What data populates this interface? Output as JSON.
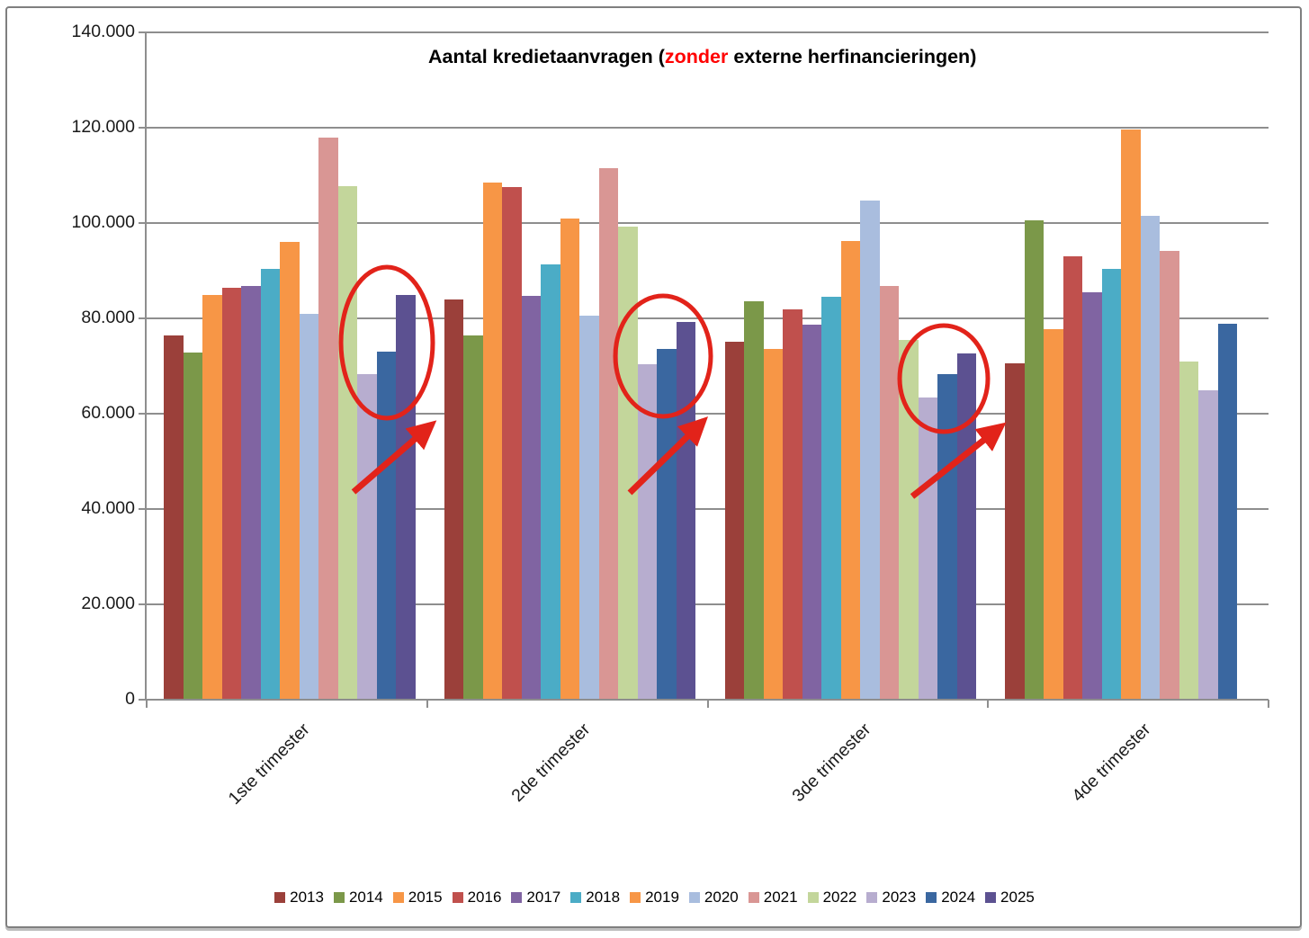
{
  "chart_data": {
    "type": "bar",
    "title": "Aantal kredietaanvragen (zonder externe herfinancieringen)",
    "title_parts": {
      "prefix": "Aantal kredietaanvragen (",
      "highlight": "zonder",
      "suffix": " externe herfinancieringen)"
    },
    "title_highlight_color": "#FF0000",
    "categories": [
      "1ste trimester",
      "2de trimester",
      "3de trimester",
      "4de trimester"
    ],
    "series": [
      {
        "name": "2013",
        "color": "#9B403A",
        "values": [
          76500,
          83900,
          75100,
          70600
        ]
      },
      {
        "name": "2014",
        "color": "#7B9849",
        "values": [
          72900,
          76400,
          83600,
          100600
        ]
      },
      {
        "name": "2015",
        "color": "#F79646",
        "values": [
          85000,
          108400,
          73500,
          77700
        ]
      },
      {
        "name": "2016",
        "color": "#C0504D",
        "values": [
          86400,
          107600,
          81900,
          93100
        ]
      },
      {
        "name": "2017",
        "color": "#8064A2",
        "values": [
          86800,
          84700,
          78600,
          85400
        ]
      },
      {
        "name": "2018",
        "color": "#4BACC6",
        "values": [
          90300,
          91300,
          84600,
          90300
        ]
      },
      {
        "name": "2019",
        "color": "#F79646",
        "values": [
          96100,
          100900,
          96200,
          119600
        ]
      },
      {
        "name": "2020",
        "color": "#A9BDDE",
        "values": [
          81000,
          80500,
          104700,
          101600
        ]
      },
      {
        "name": "2021",
        "color": "#D99694",
        "values": [
          117900,
          111500,
          86800,
          94200
        ]
      },
      {
        "name": "2022",
        "color": "#C3D69B",
        "values": [
          107800,
          99200,
          75400,
          71000
        ]
      },
      {
        "name": "2023",
        "color": "#B7ADCF",
        "values": [
          68300,
          70300,
          63400,
          64900
        ]
      },
      {
        "name": "2024",
        "color": "#3A67A0",
        "values": [
          73000,
          73500,
          68300,
          78900
        ]
      },
      {
        "name": "2025",
        "color": "#5C5191",
        "values": [
          85000,
          79200,
          72700,
          null
        ]
      }
    ],
    "ylim": [
      0,
      140000
    ],
    "ytick_step": 20000,
    "ytick_labels": [
      "0",
      "20.000",
      "40.000",
      "60.000",
      "80.000",
      "100.000",
      "120.000",
      "140.000"
    ],
    "grid": true,
    "legend_position": "bottom",
    "annotations": {
      "color": "#E2231A",
      "items": [
        {
          "kind": "ellipse-with-arrow",
          "category": "1ste trimester",
          "highlights": "2023-2025 bars"
        },
        {
          "kind": "ellipse-with-arrow",
          "category": "2de trimester",
          "highlights": "2023-2025 bars"
        },
        {
          "kind": "ellipse-with-arrow",
          "category": "3de trimester",
          "highlights": "2023-2025 bars"
        }
      ]
    }
  }
}
